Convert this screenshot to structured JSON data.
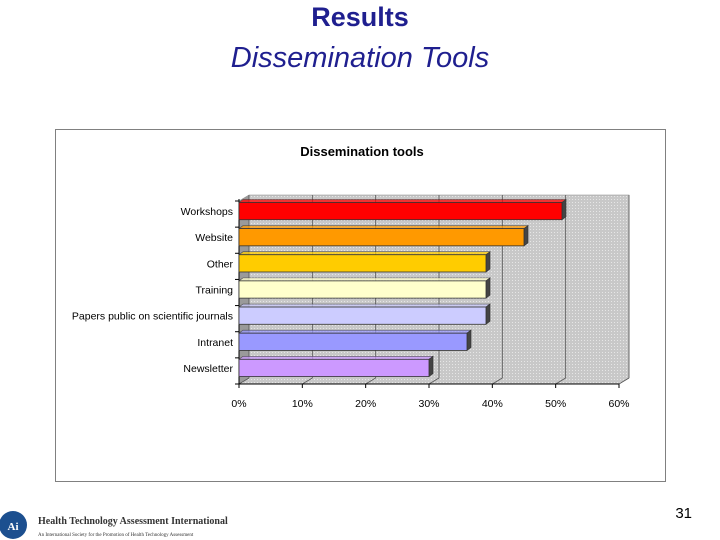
{
  "slide": {
    "title": "Results",
    "subtitle": "Dissemination Tools",
    "page_number": "31"
  },
  "footer": {
    "org_name": "Health Technology Assessment International",
    "org_tagline": "An International Society for the Promotion of Health Technology Assessment",
    "logo_text": "HTAi"
  },
  "chart_data": {
    "type": "bar",
    "orientation": "horizontal",
    "title": "Dissemination tools",
    "categories": [
      "Workshops",
      "Website",
      "Other",
      "Training",
      "Papers public on scientific journals",
      "Intranet",
      "Newsletter"
    ],
    "values": [
      51,
      45,
      39,
      39,
      39,
      36,
      30
    ],
    "bar_colors": [
      "#ff0000",
      "#ff9900",
      "#ffcc00",
      "#ffffcc",
      "#ccccff",
      "#9999ff",
      "#cc99ff"
    ],
    "xlim": [
      0,
      60
    ],
    "xticks": [
      "0%",
      "10%",
      "20%",
      "30%",
      "40%",
      "50%",
      "60%"
    ],
    "xlabel": "",
    "ylabel": "",
    "grid": true,
    "plot_background": "#c0c0c0"
  }
}
